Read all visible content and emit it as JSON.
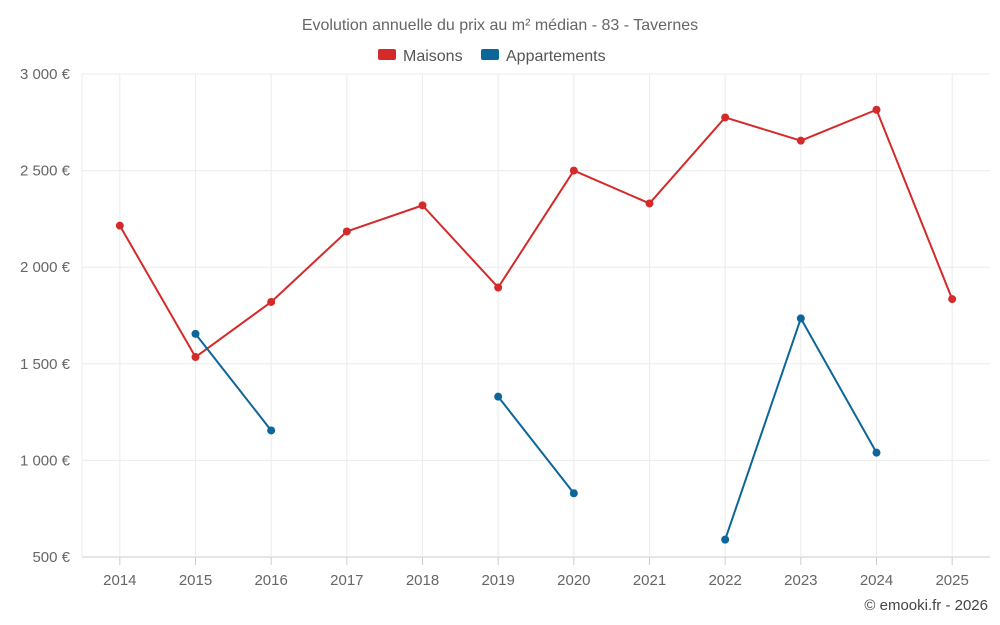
{
  "chart_data": {
    "type": "line",
    "title": "Evolution annuelle du prix au m² médian - 83 - Tavernes",
    "categories": [
      "2014",
      "2015",
      "2016",
      "2017",
      "2018",
      "2019",
      "2020",
      "2021",
      "2022",
      "2023",
      "2024",
      "2025"
    ],
    "y_ticks": [
      "500 €",
      "1 000 €",
      "1 500 €",
      "2 000 €",
      "2 500 €",
      "3 000 €"
    ],
    "ylim": [
      500,
      3000
    ],
    "grid": true,
    "legend_position": "top-center",
    "series": [
      {
        "name": "Maisons",
        "color": "#d42a2a",
        "values": [
          2215,
          1535,
          1820,
          2185,
          2320,
          1895,
          2500,
          2330,
          2775,
          2655,
          2815,
          1835
        ]
      },
      {
        "name": "Appartements",
        "color": "#0c6699",
        "values": [
          null,
          1655,
          1155,
          null,
          null,
          1330,
          830,
          null,
          590,
          1735,
          1040,
          null
        ]
      }
    ],
    "credit": "© emooki.fr - 2026"
  }
}
